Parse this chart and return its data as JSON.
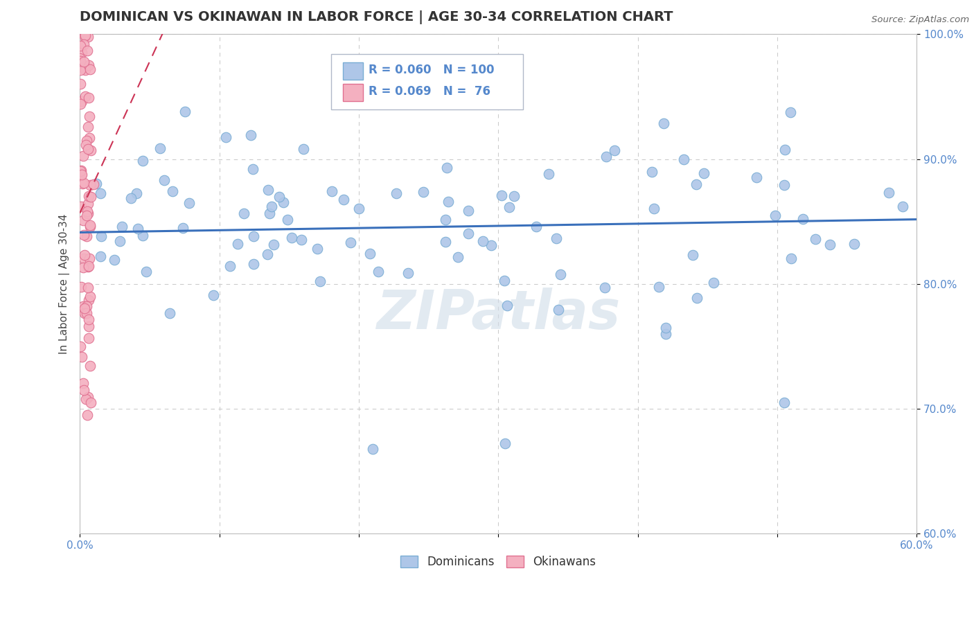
{
  "title": "DOMINICAN VS OKINAWAN IN LABOR FORCE | AGE 30-34 CORRELATION CHART",
  "source": "Source: ZipAtlas.com",
  "ylabel": "In Labor Force | Age 30-34",
  "xlim": [
    0.0,
    0.6
  ],
  "ylim": [
    0.6,
    1.0
  ],
  "blue_color": "#aec6e8",
  "blue_edge": "#7aadd4",
  "pink_color": "#f4b0c0",
  "pink_edge": "#e07090",
  "blue_line_color": "#3a70bb",
  "pink_line_color": "#cc3355",
  "legend_R_blue": "0.060",
  "legend_N_blue": "100",
  "legend_R_pink": "0.069",
  "legend_N_pink": "76",
  "watermark": "ZIPatlas",
  "grid_color": "#cccccc",
  "tick_color": "#5588cc"
}
